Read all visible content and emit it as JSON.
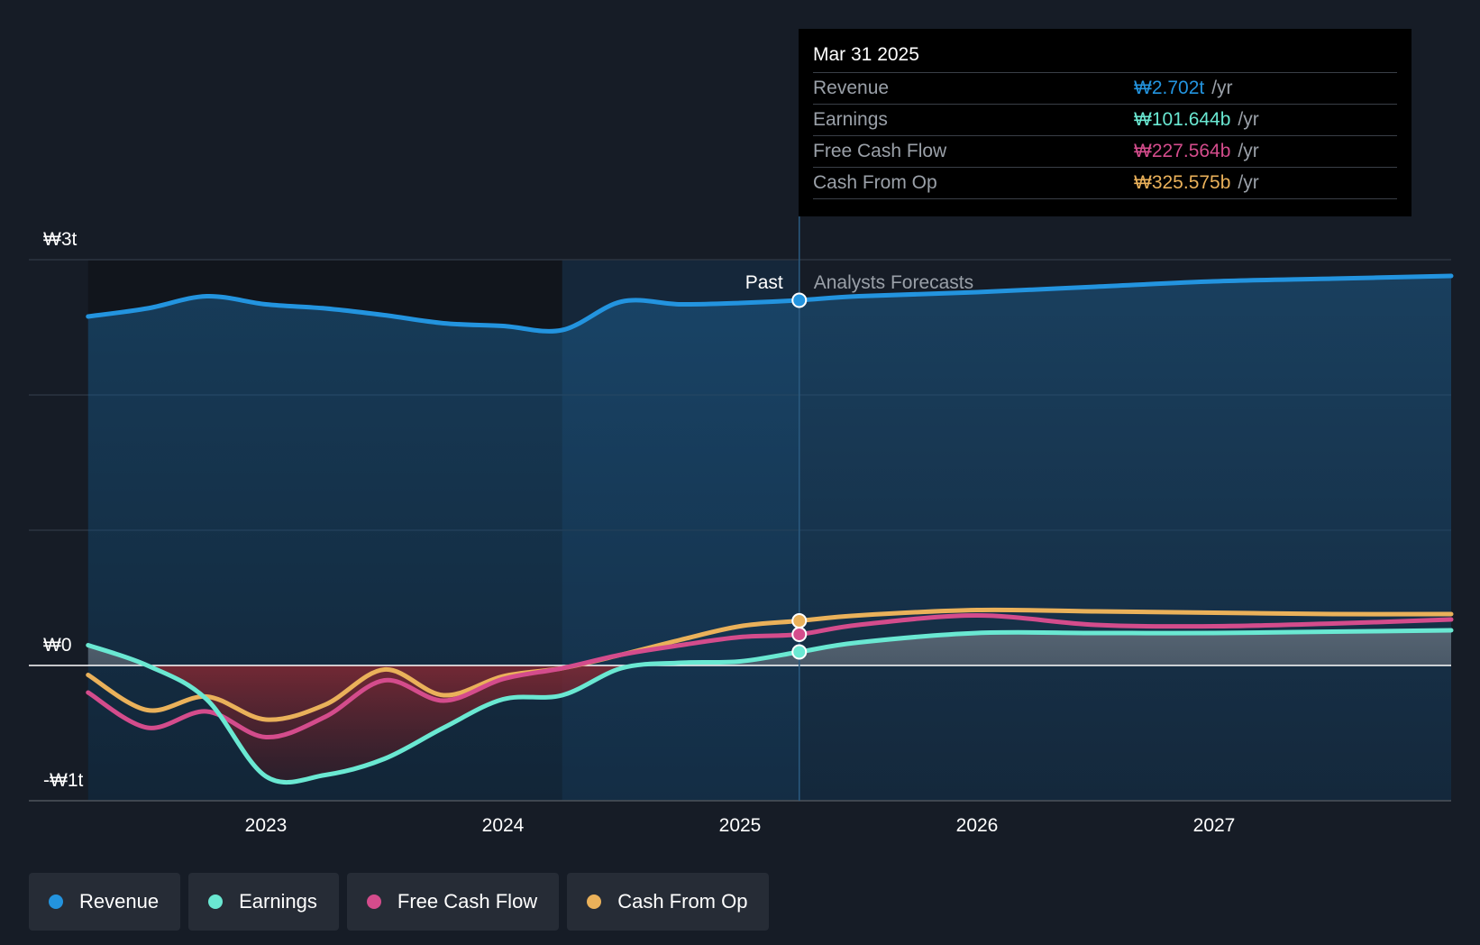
{
  "colors": {
    "background": "#161c26",
    "revenue": "#2394df",
    "earnings": "#6ae8d2",
    "free_cash_flow": "#d44c8c",
    "cash_from_op": "#eab15a"
  },
  "tooltip": {
    "date": "Mar 31 2025",
    "rows": [
      {
        "label": "Revenue",
        "value": "₩2.702t",
        "unit": "/yr"
      },
      {
        "label": "Earnings",
        "value": "₩101.644b",
        "unit": "/yr"
      },
      {
        "label": "Free Cash Flow",
        "value": "₩227.564b",
        "unit": "/yr"
      },
      {
        "label": "Cash From Op",
        "value": "₩325.575b",
        "unit": "/yr"
      }
    ]
  },
  "legend": [
    {
      "label": "Revenue"
    },
    {
      "label": "Earnings"
    },
    {
      "label": "Free Cash Flow"
    },
    {
      "label": "Cash From Op"
    }
  ],
  "chart_data": {
    "type": "line",
    "y_tick_labels": [
      "₩3t",
      "₩0",
      "-₩1t"
    ],
    "x_tick_labels": [
      "2023",
      "2024",
      "2025",
      "2026",
      "2027"
    ],
    "ylim": [
      -1.0,
      3.0
    ],
    "y_unit": "trillion KRW",
    "past_label": "Past",
    "forecast_label": "Analysts Forecasts",
    "past_end": 2025.25,
    "legend_position": "bottom-left",
    "series": [
      {
        "name": "Revenue",
        "x": [
          2022.25,
          2022.5,
          2022.75,
          2023.0,
          2023.25,
          2023.5,
          2023.75,
          2024.0,
          2024.25,
          2024.5,
          2024.75,
          2025.0,
          2025.25,
          2025.5,
          2026.0,
          2026.5,
          2027.0,
          2027.5,
          2028.0
        ],
        "y": [
          2.58,
          2.64,
          2.73,
          2.67,
          2.64,
          2.59,
          2.53,
          2.51,
          2.48,
          2.69,
          2.67,
          2.68,
          2.7,
          2.73,
          2.76,
          2.8,
          2.84,
          2.86,
          2.88
        ]
      },
      {
        "name": "Earnings",
        "x": [
          2022.25,
          2022.5,
          2022.75,
          2023.0,
          2023.25,
          2023.5,
          2023.75,
          2024.0,
          2024.25,
          2024.5,
          2024.75,
          2025.0,
          2025.25,
          2025.5,
          2026.0,
          2026.5,
          2027.0,
          2027.5,
          2028.0
        ],
        "y": [
          0.15,
          0.0,
          -0.25,
          -0.82,
          -0.81,
          -0.69,
          -0.46,
          -0.25,
          -0.22,
          -0.02,
          0.02,
          0.03,
          0.1,
          0.17,
          0.24,
          0.24,
          0.24,
          0.25,
          0.26
        ]
      },
      {
        "name": "Free Cash Flow",
        "x": [
          2022.25,
          2022.5,
          2022.75,
          2023.0,
          2023.25,
          2023.5,
          2023.75,
          2024.0,
          2024.25,
          2024.5,
          2024.75,
          2025.0,
          2025.25,
          2025.5,
          2026.0,
          2026.5,
          2027.0,
          2027.5,
          2028.0
        ],
        "y": [
          -0.2,
          -0.46,
          -0.34,
          -0.53,
          -0.38,
          -0.11,
          -0.26,
          -0.1,
          -0.02,
          0.08,
          0.15,
          0.21,
          0.23,
          0.3,
          0.37,
          0.3,
          0.29,
          0.31,
          0.34
        ]
      },
      {
        "name": "Cash From Op",
        "x": [
          2022.25,
          2022.5,
          2022.75,
          2023.0,
          2023.25,
          2023.5,
          2023.75,
          2024.0,
          2024.25,
          2024.5,
          2024.75,
          2025.0,
          2025.25,
          2025.5,
          2026.0,
          2026.5,
          2027.0,
          2027.5,
          2028.0
        ],
        "y": [
          -0.07,
          -0.33,
          -0.23,
          -0.4,
          -0.29,
          -0.03,
          -0.22,
          -0.08,
          -0.02,
          0.08,
          0.19,
          0.29,
          0.33,
          0.37,
          0.41,
          0.4,
          0.39,
          0.38,
          0.38
        ]
      }
    ]
  }
}
